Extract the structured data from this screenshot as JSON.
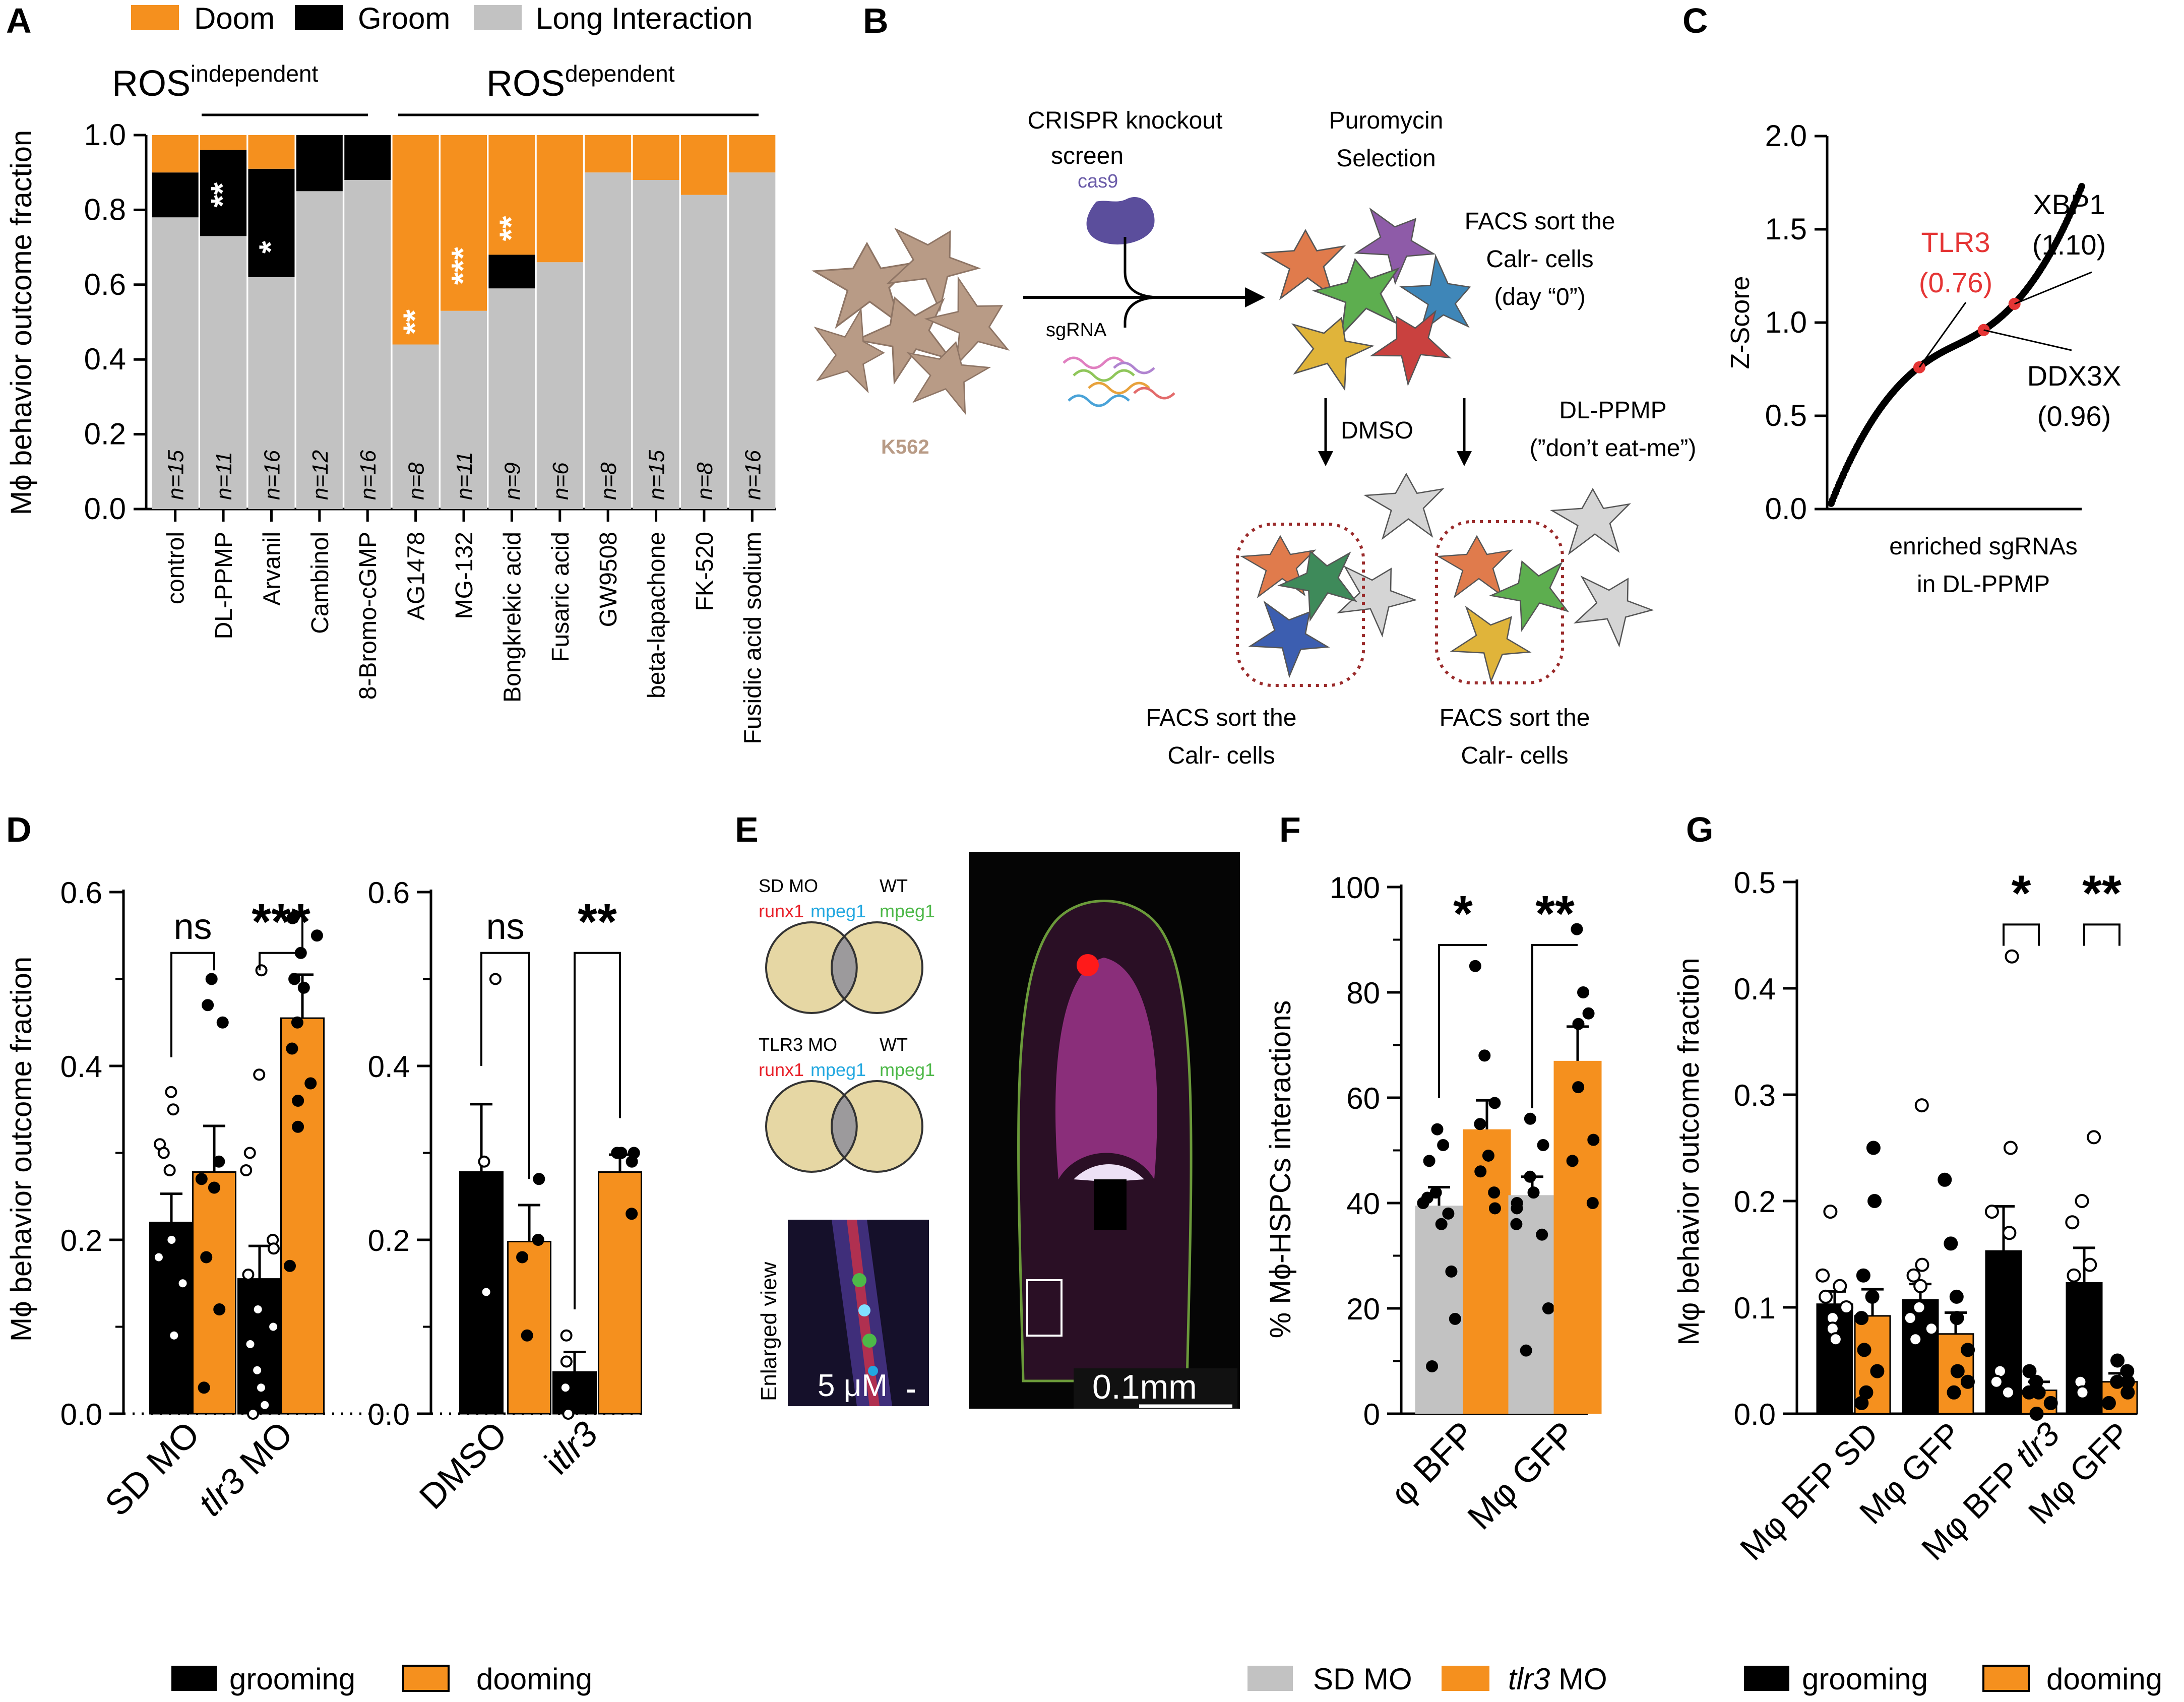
{
  "colors": {
    "doom": "#F5901E",
    "groom": "#000000",
    "long": "#C2C2C2",
    "red": "#E53535",
    "tlr3_red": "#E8212A",
    "mpeg_blue": "#23A8E0",
    "mpeg_green": "#4DB848",
    "egg": "#E6D7A4",
    "egg_overlap": "#9C9A9C",
    "k562": "#B89B86"
  },
  "panels": {
    "A": "A",
    "B": "B",
    "C": "C",
    "D": "D",
    "E": "E",
    "F": "F",
    "G": "G"
  },
  "panelA": {
    "legend": [
      "Doom",
      "Groom",
      "Long Interaction"
    ],
    "groups": [
      {
        "base": "ROS",
        "sup": "independent"
      },
      {
        "base": "ROS",
        "sup": "dependent"
      }
    ],
    "ylabel": "Mϕ behavior outcome fraction",
    "yticks": [
      "0.0",
      "0.2",
      "0.4",
      "0.6",
      "0.8",
      "1.0"
    ],
    "chart_data": {
      "type": "bar",
      "stacked": true,
      "ylim": [
        0,
        1
      ],
      "categories": [
        "control",
        "DL-PPMP",
        "Arvanil",
        "Cambinol",
        "8-Bromo-cGMP",
        "AG1478",
        "MG-132",
        "Bongkrekic acid",
        "Fusaric acid",
        "GW9508",
        "beta-lapachone",
        "FK-520",
        "Fusidic acid sodium"
      ],
      "n": [
        "n=15",
        "n=11",
        "n=16",
        "n=12",
        "n=16",
        "n=8",
        "n=11",
        "n=9",
        "n=6",
        "n=8",
        "n=15",
        "n=8",
        "n=16"
      ],
      "series": [
        {
          "name": "Long Interaction",
          "values": [
            0.78,
            0.73,
            0.62,
            0.85,
            0.88,
            0.44,
            0.53,
            0.59,
            0.66,
            0.9,
            0.88,
            0.84,
            0.9
          ]
        },
        {
          "name": "Groom",
          "values": [
            0.12,
            0.23,
            0.29,
            0.15,
            0.12,
            0.0,
            0.0,
            0.09,
            0.0,
            0.0,
            0.0,
            0.0,
            0.0
          ]
        },
        {
          "name": "Doom",
          "values": [
            0.1,
            0.04,
            0.09,
            0.0,
            0.0,
            0.56,
            0.47,
            0.32,
            0.34,
            0.1,
            0.12,
            0.16,
            0.1
          ]
        }
      ],
      "annotations": [
        {
          "category": "DL-PPMP",
          "text": "**",
          "y": 0.84
        },
        {
          "category": "Arvanil",
          "text": "*",
          "y": 0.7
        },
        {
          "category": "AG1478",
          "text": "**",
          "y": 0.5
        },
        {
          "category": "MG-132",
          "text": "***",
          "y": 0.65
        },
        {
          "category": "Bongkrekic acid",
          "text": "**",
          "y": 0.75
        }
      ]
    }
  },
  "panelB": {
    "crispr": [
      "CRISPR knockout",
      "screen"
    ],
    "cas9": "cas9",
    "sgrna": "sgRNA",
    "k562": "K562",
    "puromycin": [
      "Puromycin",
      "Selection"
    ],
    "facs_top": [
      "FACS sort the",
      "Calr- cells",
      "(day “0”)"
    ],
    "dmso": "DMSO",
    "ppmp": [
      "DL-PPMP",
      "(”don’t eat-me”)"
    ],
    "facs_left": [
      "FACS sort the",
      "Calr- cells"
    ],
    "facs_right": [
      "FACS sort the",
      "Calr- cells"
    ]
  },
  "panelC": {
    "ylabel": "Z-Score",
    "xlabel": [
      "enriched sgRNAs",
      "in DL-PPMP"
    ],
    "yticks": [
      "0.0",
      "0.5",
      "1.0",
      "1.5",
      "2.0"
    ],
    "chart_data": {
      "type": "scatter",
      "ylim": [
        0,
        2.0
      ],
      "curve_min": 0.03,
      "curve_max": 1.73,
      "highlights": [
        {
          "label": "TLR3",
          "value": "(0.76)",
          "z": 0.76
        },
        {
          "label": "XBP1",
          "value": "(1.10)",
          "z": 1.1
        },
        {
          "label": "DDX3X",
          "value": "(0.96)",
          "z": 0.96
        }
      ]
    }
  },
  "panelD": {
    "ylabel": "Mϕ behavior outcome fraction",
    "yticks": [
      "0.0",
      "0.2",
      "0.4",
      "0.6"
    ],
    "sig": [
      "ns",
      "***",
      "ns",
      "**"
    ],
    "xlabels": [
      {
        "pre": "",
        "it": "",
        "post": "SD MO"
      },
      {
        "pre": "",
        "it": "tlr3",
        "post": " MO"
      },
      {
        "pre": "",
        "it": "",
        "post": "DMSO"
      },
      {
        "pre": "i",
        "it": "tlr3",
        "post": ""
      }
    ],
    "legend": [
      "grooming",
      "dooming"
    ],
    "chart_data": {
      "type": "bar",
      "ylim": [
        0,
        0.6
      ],
      "groups": [
        "SD MO",
        "tlr3 MO",
        "DMSO",
        "itlr3"
      ],
      "series": [
        {
          "name": "grooming",
          "values": [
            0.22,
            0.155,
            0.278,
            0.048
          ],
          "sem": [
            0.033,
            0.038,
            0.078,
            0.023
          ]
        },
        {
          "name": "dooming",
          "values": [
            0.278,
            0.455,
            0.198,
            0.278
          ],
          "sem": [
            0.053,
            0.05,
            0.042,
            0.02
          ]
        }
      ]
    }
  },
  "panelE": {
    "sd": {
      "left": "SD MO",
      "right": "WT",
      "m1": "runx1",
      "m2": "mpeg1",
      "m3": "mpeg1"
    },
    "tlr": {
      "left": "TLR3 MO",
      "right": "WT",
      "m1": "runx1",
      "m2": "mpeg1",
      "m3": "mpeg1"
    },
    "enlarged": "Enlarged view",
    "scale_small": "5 μM",
    "scale_big": "0.1mm"
  },
  "panelF": {
    "ylabel": "% Mϕ-HSPCs interactions",
    "yticks": [
      "0",
      "20",
      "40",
      "60",
      "80",
      "100"
    ],
    "sig": [
      "*",
      "**"
    ],
    "xlabels": [
      "φ BFP",
      "Mφ GFP"
    ],
    "legend": [
      "SD MO",
      "tlr3",
      " MO"
    ],
    "chart_data": {
      "type": "bar",
      "ylim": [
        0,
        100
      ],
      "groups": [
        "φ BFP",
        "Mφ GFP"
      ],
      "series": [
        {
          "name": "SD MO",
          "values": [
            39.5,
            41.5
          ],
          "sem": [
            3.5,
            3.5
          ]
        },
        {
          "name": "tlr3 MO",
          "values": [
            54,
            67
          ],
          "sem": [
            5.5,
            6.5
          ]
        }
      ]
    }
  },
  "panelG": {
    "ylabel": "Mφ behavior outcome fraction",
    "yticks": [
      "0.0",
      "0.1",
      "0.2",
      "0.3",
      "0.4",
      "0.5"
    ],
    "sig": [
      "*",
      "**"
    ],
    "xlabels": [
      {
        "pre": "Mφ BFP SD",
        "it": ""
      },
      {
        "pre": "Mφ GFP",
        "it": ""
      },
      {
        "pre": "Mφ BFP ",
        "it": "tlr3"
      },
      {
        "pre": "Mφ GFP",
        "it": ""
      }
    ],
    "legend": [
      "grooming",
      "dooming"
    ],
    "chart_data": {
      "type": "bar",
      "ylim": [
        0,
        0.5
      ],
      "groups": [
        "Mφ BFP SD",
        "Mφ GFP",
        "Mφ BFP tlr3",
        "Mφ GFP"
      ],
      "series": [
        {
          "name": "grooming",
          "values": [
            0.103,
            0.107,
            0.153,
            0.123
          ],
          "sem": [
            0.012,
            0.015,
            0.042,
            0.033
          ]
        },
        {
          "name": "dooming",
          "values": [
            0.092,
            0.075,
            0.022,
            0.03
          ],
          "sem": [
            0.025,
            0.02,
            0.008,
            0.008
          ]
        }
      ]
    }
  }
}
